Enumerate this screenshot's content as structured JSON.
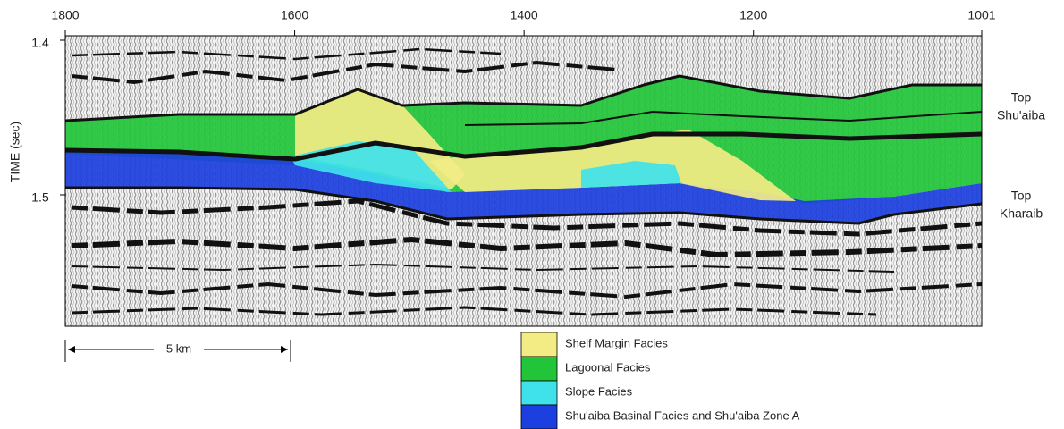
{
  "axes": {
    "x_ticks": [
      1800,
      1600,
      1400,
      1200,
      1001
    ],
    "y_ticks": [
      1.4,
      1.5
    ],
    "y_label": "TIME (sec)"
  },
  "horizons": [
    {
      "lines": [
        "Top",
        "Shu'aiba"
      ]
    },
    {
      "lines": [
        "Top",
        "Kharaib"
      ]
    }
  ],
  "scale_bar": "5 km",
  "legend": [
    {
      "label": "Shelf Margin Facies",
      "color": "#f3ec84"
    },
    {
      "label": "Lagoonal Facies",
      "color": "#22c43a"
    },
    {
      "label": "Slope Facies",
      "color": "#3fe2ea"
    },
    {
      "label": "Shu'aiba Basinal Facies and Shu'aiba Zone A",
      "color": "#1c3fe0"
    }
  ]
}
